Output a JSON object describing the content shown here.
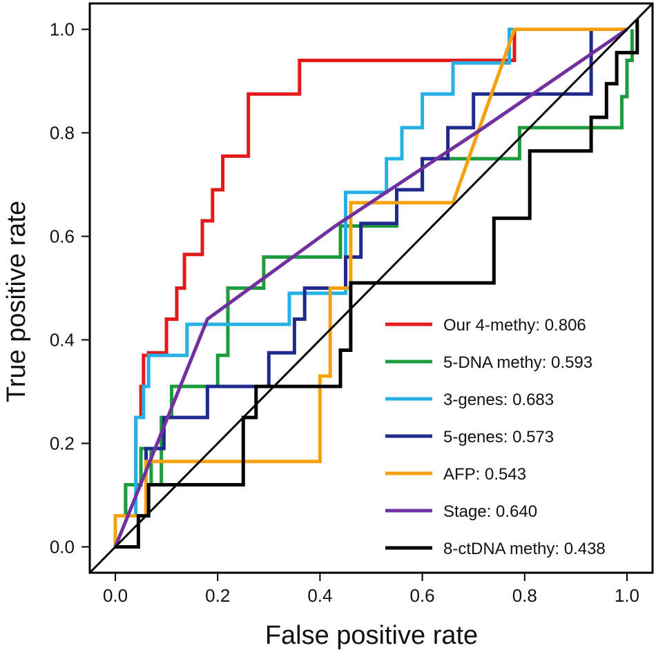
{
  "chart_data": {
    "type": "line",
    "title": "",
    "xlabel": "False positive rate",
    "ylabel": "True positive rate",
    "xlim": [
      -0.05,
      1.05
    ],
    "ylim": [
      -0.05,
      1.05
    ],
    "xticks": [
      "0.0",
      "0.2",
      "0.4",
      "0.6",
      "0.8",
      "1.0"
    ],
    "yticks": [
      "0.0",
      "0.2",
      "0.4",
      "0.6",
      "0.8",
      "1.0"
    ],
    "grid": false,
    "legend_position": "bottom-right",
    "diagonal": {
      "name": "reference-diagonal",
      "color": "#000000",
      "x": [
        -0.05,
        1.05
      ],
      "y": [
        -0.05,
        1.05
      ]
    },
    "series": [
      {
        "name": "Our 4-methy",
        "auc": "0.806",
        "legend": "Our 4-methy: 0.806",
        "color": "#e31a1c",
        "x": [
          0,
          0,
          0.02,
          0.02,
          0.04,
          0.04,
          0.05,
          0.05,
          0.055,
          0.055,
          0.065,
          0.065,
          0.1,
          0.1,
          0.12,
          0.12,
          0.135,
          0.135,
          0.17,
          0.17,
          0.19,
          0.19,
          0.21,
          0.21,
          0.26,
          0.26,
          0.36,
          0.36,
          0.38,
          0.38,
          0.78,
          0.78,
          1.0
        ],
        "y": [
          0,
          0.06,
          0.06,
          0.12,
          0.12,
          0.25,
          0.25,
          0.31,
          0.31,
          0.37,
          0.37,
          0.375,
          0.375,
          0.44,
          0.44,
          0.5,
          0.5,
          0.565,
          0.565,
          0.63,
          0.63,
          0.69,
          0.69,
          0.755,
          0.755,
          0.875,
          0.875,
          0.94,
          0.94,
          0.94,
          0.94,
          1.0,
          1.0
        ]
      },
      {
        "name": "5-DNA methy",
        "auc": "0.593",
        "legend": "5-DNA methy: 0.593",
        "color": "#1e9b3c",
        "x": [
          0,
          0,
          0.02,
          0.02,
          0.05,
          0.05,
          0.07,
          0.07,
          0.09,
          0.09,
          0.11,
          0.11,
          0.2,
          0.2,
          0.22,
          0.22,
          0.29,
          0.29,
          0.44,
          0.44,
          0.52,
          0.52,
          0.55,
          0.55,
          0.6,
          0.6,
          0.63,
          0.63,
          0.79,
          0.79,
          0.99,
          0.99,
          1.0,
          1.0,
          1.01,
          1.01
        ],
        "y": [
          0,
          0.06,
          0.06,
          0.12,
          0.12,
          0.19,
          0.19,
          0.12,
          0.12,
          0.25,
          0.25,
          0.31,
          0.31,
          0.37,
          0.37,
          0.5,
          0.5,
          0.56,
          0.56,
          0.62,
          0.62,
          0.62,
          0.62,
          0.69,
          0.69,
          0.75,
          0.75,
          0.75,
          0.75,
          0.81,
          0.81,
          0.87,
          0.87,
          0.94,
          0.94,
          1.0
        ]
      },
      {
        "name": "3-genes",
        "auc": "0.683",
        "legend": "3-genes: 0.683",
        "color": "#27b0e6",
        "x": [
          0,
          0,
          0.04,
          0.04,
          0.055,
          0.055,
          0.065,
          0.065,
          0.14,
          0.14,
          0.34,
          0.34,
          0.45,
          0.45,
          0.53,
          0.53,
          0.56,
          0.56,
          0.6,
          0.6,
          0.66,
          0.66,
          0.77,
          0.77,
          1.0
        ],
        "y": [
          0,
          0.06,
          0.06,
          0.25,
          0.25,
          0.31,
          0.31,
          0.37,
          0.37,
          0.43,
          0.43,
          0.49,
          0.49,
          0.685,
          0.685,
          0.75,
          0.75,
          0.81,
          0.81,
          0.875,
          0.875,
          0.935,
          0.935,
          1.0,
          1.0
        ]
      },
      {
        "name": "5-genes",
        "auc": "0.573",
        "legend": "5-genes: 0.573",
        "color": "#1f2a8c",
        "x": [
          0,
          0,
          0.06,
          0.06,
          0.095,
          0.095,
          0.13,
          0.13,
          0.18,
          0.18,
          0.21,
          0.21,
          0.3,
          0.3,
          0.35,
          0.35,
          0.37,
          0.37,
          0.39,
          0.39,
          0.45,
          0.45,
          0.48,
          0.48,
          0.55,
          0.55,
          0.6,
          0.6,
          0.65,
          0.65,
          0.7,
          0.7,
          0.73,
          0.73,
          0.93,
          0.93,
          1.0
        ],
        "y": [
          0,
          0.06,
          0.06,
          0.19,
          0.19,
          0.25,
          0.25,
          0.25,
          0.25,
          0.31,
          0.31,
          0.31,
          0.31,
          0.375,
          0.375,
          0.44,
          0.44,
          0.5,
          0.5,
          0.5,
          0.5,
          0.56,
          0.56,
          0.625,
          0.625,
          0.69,
          0.69,
          0.75,
          0.75,
          0.81,
          0.81,
          0.875,
          0.875,
          0.875,
          0.875,
          1.0,
          1.0
        ]
      },
      {
        "name": "AFP",
        "auc": "0.543",
        "legend": "AFP: 0.543",
        "color": "#f5a10f",
        "x": [
          0,
          0,
          0.06,
          0.06,
          0.4,
          0.4,
          0.42,
          0.42,
          0.46,
          0.46,
          0.66,
          0.78,
          1.0
        ],
        "y": [
          0,
          0.06,
          0.06,
          0.165,
          0.165,
          0.33,
          0.33,
          0.5,
          0.5,
          0.665,
          0.665,
          1.0,
          1.0
        ]
      },
      {
        "name": "Stage",
        "auc": "0.640",
        "legend": "Stage: 0.640",
        "color": "#7030a0",
        "x": [
          0,
          0.18,
          0.43,
          0.72,
          1.0
        ],
        "y": [
          0,
          0.44,
          0.62,
          0.81,
          1.0
        ]
      },
      {
        "name": "8-ctDNA methy",
        "auc": "0.438",
        "legend": "8-ctDNA methy: 0.438",
        "color": "#000000",
        "x": [
          0,
          0.045,
          0.045,
          0.065,
          0.065,
          0.25,
          0.25,
          0.275,
          0.275,
          0.44,
          0.44,
          0.46,
          0.46,
          0.74,
          0.74,
          0.81,
          0.81,
          0.83,
          0.83,
          0.93,
          0.93,
          0.96,
          0.96,
          0.98,
          0.98,
          1.02,
          1.02
        ],
        "y": [
          0,
          0,
          0.06,
          0.06,
          0.12,
          0.12,
          0.25,
          0.25,
          0.31,
          0.31,
          0.38,
          0.38,
          0.51,
          0.51,
          0.635,
          0.635,
          0.765,
          0.765,
          0.765,
          0.765,
          0.83,
          0.83,
          0.895,
          0.895,
          0.955,
          0.955,
          1.02
        ]
      }
    ]
  }
}
